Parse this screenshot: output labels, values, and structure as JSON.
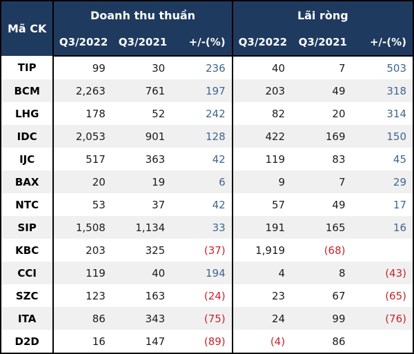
{
  "chart_data": {
    "type": "table",
    "code_header": "Mã CK",
    "sections": [
      {
        "label": "Doanh thu thuần",
        "columns": [
          "Q3/2022",
          "Q3/2021",
          "+/-(%)"
        ]
      },
      {
        "label": "Lãi ròng",
        "columns": [
          "Q3/2022",
          "Q3/2021",
          "+/-(%)"
        ]
      }
    ],
    "rows": [
      {
        "code": "TIP",
        "values": [
          "99",
          "30",
          "236",
          "40",
          "7",
          "503"
        ]
      },
      {
        "code": "BCM",
        "values": [
          "2,263",
          "761",
          "197",
          "203",
          "49",
          "318"
        ]
      },
      {
        "code": "LHG",
        "values": [
          "178",
          "52",
          "242",
          "82",
          "20",
          "314"
        ]
      },
      {
        "code": "IDC",
        "values": [
          "2,053",
          "901",
          "128",
          "422",
          "169",
          "150"
        ]
      },
      {
        "code": "IJC",
        "values": [
          "517",
          "363",
          "42",
          "119",
          "83",
          "45"
        ]
      },
      {
        "code": "BAX",
        "values": [
          "20",
          "19",
          "6",
          "9",
          "7",
          "29"
        ]
      },
      {
        "code": "NTC",
        "values": [
          "53",
          "37",
          "42",
          "57",
          "49",
          "17"
        ]
      },
      {
        "code": "SIP",
        "values": [
          "1,508",
          "1,134",
          "33",
          "191",
          "165",
          "16"
        ]
      },
      {
        "code": "KBC",
        "values": [
          "203",
          "325",
          "(37)",
          "1,919",
          "(68)",
          ""
        ]
      },
      {
        "code": "CCI",
        "values": [
          "119",
          "40",
          "194",
          "4",
          "8",
          "(43)"
        ]
      },
      {
        "code": "SZC",
        "values": [
          "123",
          "163",
          "(24)",
          "23",
          "67",
          "(65)"
        ]
      },
      {
        "code": "ITA",
        "values": [
          "86",
          "343",
          "(75)",
          "24",
          "99",
          "(76)"
        ]
      },
      {
        "code": "D2D",
        "values": [
          "16",
          "147",
          "(89)",
          "(4)",
          "86",
          ""
        ]
      }
    ],
    "legend_position": "none",
    "grid": "row-stripes"
  },
  "colors": {
    "header_bg": "#1F3A5F",
    "header_text": "#FFFFFF",
    "positive_pct": "#3F6590",
    "negative": "#C8232D",
    "stripe": "#F0F0F0",
    "row_bg": "#FFFFFF",
    "border": "#000000",
    "text": "#1A1A1A"
  }
}
